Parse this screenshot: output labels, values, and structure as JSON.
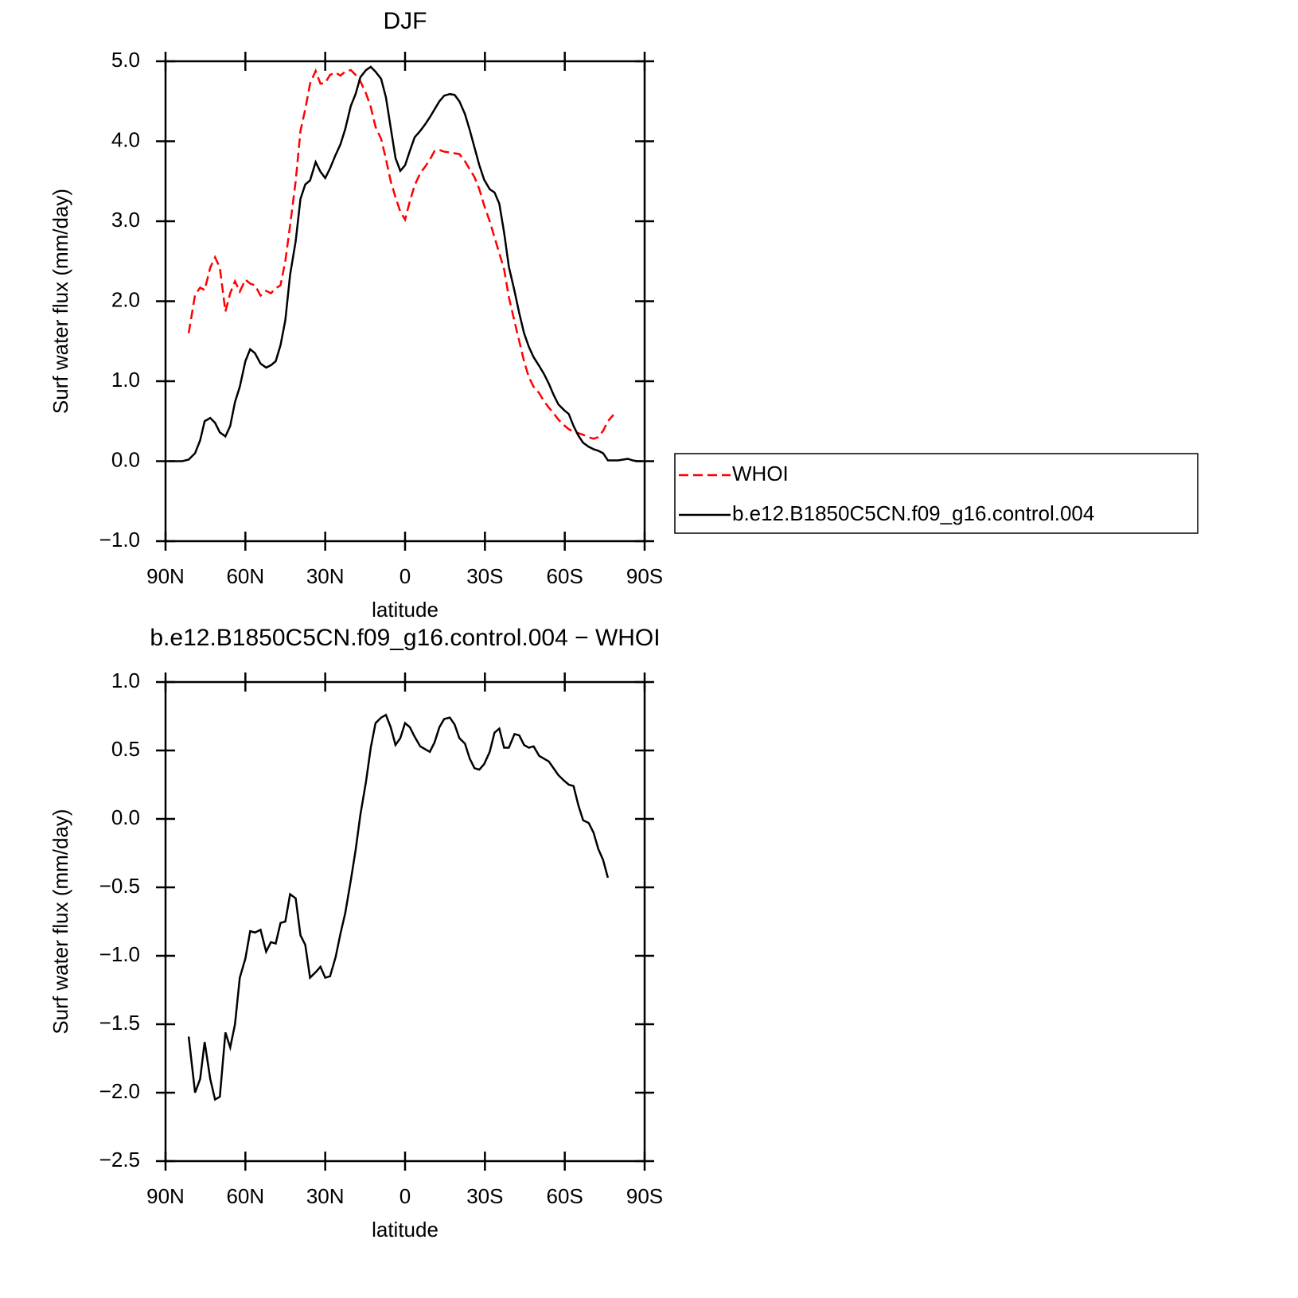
{
  "chart_data": [
    {
      "type": "line",
      "title": "DJF",
      "xlabel": "latitude",
      "ylabel": "Surf water flux (mm/day)",
      "xlim": [
        90,
        -90
      ],
      "xticks": [
        {
          "value": 90,
          "label": "90N"
        },
        {
          "value": 60,
          "label": "60N"
        },
        {
          "value": 30,
          "label": "30N"
        },
        0,
        {
          "value": -30,
          "label": "30S"
        },
        {
          "value": -60,
          "label": "60S"
        },
        {
          "value": -90,
          "label": "90S"
        }
      ],
      "ylim": [
        -1,
        5
      ],
      "yticks": [
        {
          "value": -1,
          "label": "−1.0"
        },
        {
          "value": 0,
          "label": "0.0"
        },
        {
          "value": 1,
          "label": "1.0"
        },
        {
          "value": 2,
          "label": "2.0"
        },
        {
          "value": 3,
          "label": "3.0"
        },
        {
          "value": 4,
          "label": "4.0"
        },
        {
          "value": 5,
          "label": "5.0"
        }
      ],
      "x": [
        88.8,
        83.7,
        81.3,
        78.9,
        77,
        75.3,
        73.2,
        71.4,
        69.6,
        67.5,
        65.7,
        63.9,
        62.1,
        60,
        58.2,
        56.4,
        54.3,
        52.2,
        50.4,
        48.6,
        46.8,
        45,
        43.2,
        41.1,
        39.3,
        37.5,
        35.7,
        33.6,
        31.8,
        30,
        28.2,
        26.1,
        24.3,
        22.5,
        20.4,
        18.6,
        16.8,
        14.7,
        12.9,
        11.1,
        9,
        7.2,
        5.4,
        3.6,
        1.8,
        0,
        -1.8,
        -3.6,
        -5.7,
        -7.5,
        -9.3,
        -11.1,
        -12.9,
        -14.7,
        -16.8,
        -18.6,
        -20.4,
        -22.5,
        -24.3,
        -26.1,
        -27.9,
        -29.7,
        -31.8,
        -33.6,
        -35.4,
        -37.2,
        -39,
        -41.1,
        -42.9,
        -44.7,
        -46.5,
        -48.3,
        -50.4,
        -52.2,
        -54,
        -55.8,
        -57.6,
        -59.7,
        -61.5,
        -63.3,
        -65.1,
        -66.9,
        -69,
        -70.8,
        -72.6,
        -74.4,
        -76.2,
        -78.3,
        -80.1,
        -81.9,
        -83.7,
        -85.5,
        -87.3,
        -89.1
      ],
      "series": [
        {
          "name": "WHOI",
          "color": "#ff0000",
          "dashed": true,
          "values": [
            null,
            null,
            1.6,
            2.08,
            2.17,
            2.14,
            2.42,
            2.55,
            2.42,
            1.87,
            2.1,
            2.25,
            2.12,
            2.27,
            2.22,
            2.2,
            2.07,
            2.13,
            2.1,
            2.16,
            2.2,
            2.5,
            2.95,
            3.5,
            4.13,
            4.4,
            4.72,
            4.88,
            4.72,
            4.73,
            4.83,
            4.86,
            4.82,
            4.87,
            4.89,
            4.83,
            4.75,
            4.6,
            4.43,
            4.18,
            4.03,
            3.78,
            3.5,
            3.3,
            3.12,
            3.02,
            3.25,
            3.45,
            3.6,
            3.68,
            3.77,
            3.88,
            3.89,
            3.87,
            3.86,
            3.85,
            3.84,
            3.75,
            3.65,
            3.55,
            3.4,
            3.2,
            3.0,
            2.8,
            2.6,
            2.4,
            2.05,
            1.75,
            1.5,
            1.25,
            1.05,
            0.93,
            0.85,
            0.75,
            0.67,
            0.6,
            0.52,
            0.45,
            0.4,
            0.37,
            0.35,
            0.33,
            0.3,
            0.28,
            0.3,
            0.38,
            0.5,
            0.58,
            null,
            null,
            null,
            null,
            null,
            null
          ]
        },
        {
          "name": "b.e12.B1850C5CN.f09_g16.control.004",
          "color": "#000000",
          "dashed": false,
          "values": [
            0,
            0,
            0.02,
            0.1,
            0.26,
            0.5,
            0.54,
            0.48,
            0.36,
            0.31,
            0.44,
            0.74,
            0.93,
            1.25,
            1.4,
            1.35,
            1.22,
            1.17,
            1.2,
            1.25,
            1.45,
            1.76,
            2.33,
            2.75,
            3.28,
            3.46,
            3.51,
            3.74,
            3.62,
            3.54,
            3.66,
            3.83,
            3.96,
            4.15,
            4.44,
            4.59,
            4.8,
            4.89,
            4.93,
            4.87,
            4.78,
            4.55,
            4.17,
            3.79,
            3.63,
            3.7,
            3.88,
            4.05,
            4.13,
            4.21,
            4.3,
            4.4,
            4.5,
            4.57,
            4.59,
            4.58,
            4.5,
            4.34,
            4.14,
            3.92,
            3.7,
            3.52,
            3.4,
            3.36,
            3.22,
            2.86,
            2.43,
            2.13,
            1.85,
            1.6,
            1.43,
            1.3,
            1.19,
            1.09,
            0.97,
            0.83,
            0.71,
            0.64,
            0.59,
            0.44,
            0.32,
            0.23,
            0.18,
            0.15,
            0.13,
            0.1,
            0.01,
            0.01,
            0.01,
            0.02,
            0.03,
            0.01,
            0,
            0
          ]
        }
      ]
    },
    {
      "type": "line",
      "title": "b.e12.B1850C5CN.f09_g16.control.004 − WHOI",
      "xlabel": "latitude",
      "ylabel": "Surf water flux (mm/day)",
      "xlim": [
        90,
        -90
      ],
      "xticks": [
        {
          "value": 90,
          "label": "90N"
        },
        {
          "value": 60,
          "label": "60N"
        },
        {
          "value": 30,
          "label": "30N"
        },
        0,
        {
          "value": -30,
          "label": "30S"
        },
        {
          "value": -60,
          "label": "60S"
        },
        {
          "value": -90,
          "label": "90S"
        }
      ],
      "ylim": [
        -2.5,
        1
      ],
      "yticks": [
        {
          "value": -2.5,
          "label": "−2.5"
        },
        {
          "value": -2,
          "label": "−2.0"
        },
        {
          "value": -1.5,
          "label": "−1.5"
        },
        {
          "value": -1,
          "label": "−1.0"
        },
        {
          "value": -0.5,
          "label": "−0.5"
        },
        {
          "value": 0,
          "label": "0.0"
        },
        0.5,
        {
          "value": 1,
          "label": "1.0"
        }
      ],
      "x": [
        88.8,
        83.7,
        81.3,
        78.9,
        77,
        75.3,
        73.2,
        71.4,
        69.6,
        67.5,
        65.7,
        63.9,
        62.1,
        60,
        58.2,
        56.4,
        54.3,
        52.2,
        50.4,
        48.6,
        46.8,
        45,
        43.2,
        41.1,
        39.3,
        37.5,
        35.7,
        33.6,
        31.8,
        30,
        28.2,
        26.1,
        24.3,
        22.5,
        20.4,
        18.6,
        16.8,
        14.7,
        12.9,
        11.1,
        9,
        7.2,
        5.4,
        3.6,
        1.8,
        0,
        -1.8,
        -3.6,
        -5.7,
        -7.5,
        -9.3,
        -11.1,
        -12.9,
        -14.7,
        -16.8,
        -18.6,
        -20.4,
        -22.5,
        -24.3,
        -26.1,
        -27.9,
        -29.7,
        -31.8,
        -33.6,
        -35.4,
        -37.2,
        -39,
        -41.1,
        -42.9,
        -44.7,
        -46.5,
        -48.3,
        -50.4,
        -52.2,
        -54,
        -55.8,
        -57.6,
        -59.7,
        -61.5,
        -63.3,
        -65.1,
        -66.9,
        -69,
        -70.8,
        -72.6,
        -74.4,
        -76.2,
        -78.3,
        -80.1,
        -81.9,
        -83.7,
        -85.5,
        -87.3,
        -89.1
      ],
      "color": "#000000",
      "values": [
        null,
        null,
        -1.59,
        -2.0,
        -1.9,
        -1.63,
        -1.9,
        -2.05,
        -2.03,
        -1.56,
        -1.67,
        -1.5,
        -1.16,
        -1.02,
        -0.82,
        -0.83,
        -0.81,
        -0.97,
        -0.9,
        -0.91,
        -0.76,
        -0.75,
        -0.55,
        -0.58,
        -0.85,
        -0.92,
        -1.16,
        -1.12,
        -1.08,
        -1.16,
        -1.15,
        -1.01,
        -0.84,
        -0.69,
        -0.45,
        -0.23,
        0.03,
        0.27,
        0.52,
        0.7,
        0.74,
        0.76,
        0.67,
        0.54,
        0.59,
        0.7,
        0.67,
        0.6,
        0.53,
        0.51,
        0.49,
        0.56,
        0.67,
        0.73,
        0.74,
        0.69,
        0.59,
        0.55,
        0.44,
        0.37,
        0.36,
        0.4,
        0.49,
        0.63,
        0.66,
        0.52,
        0.52,
        0.62,
        0.61,
        0.54,
        0.52,
        0.53,
        0.46,
        0.44,
        0.42,
        0.37,
        0.32,
        0.28,
        0.25,
        0.24,
        0.1,
        -0.01,
        -0.03,
        -0.1,
        -0.22,
        -0.3,
        -0.43,
        null,
        null,
        null,
        null,
        null,
        null,
        null
      ]
    }
  ]
}
